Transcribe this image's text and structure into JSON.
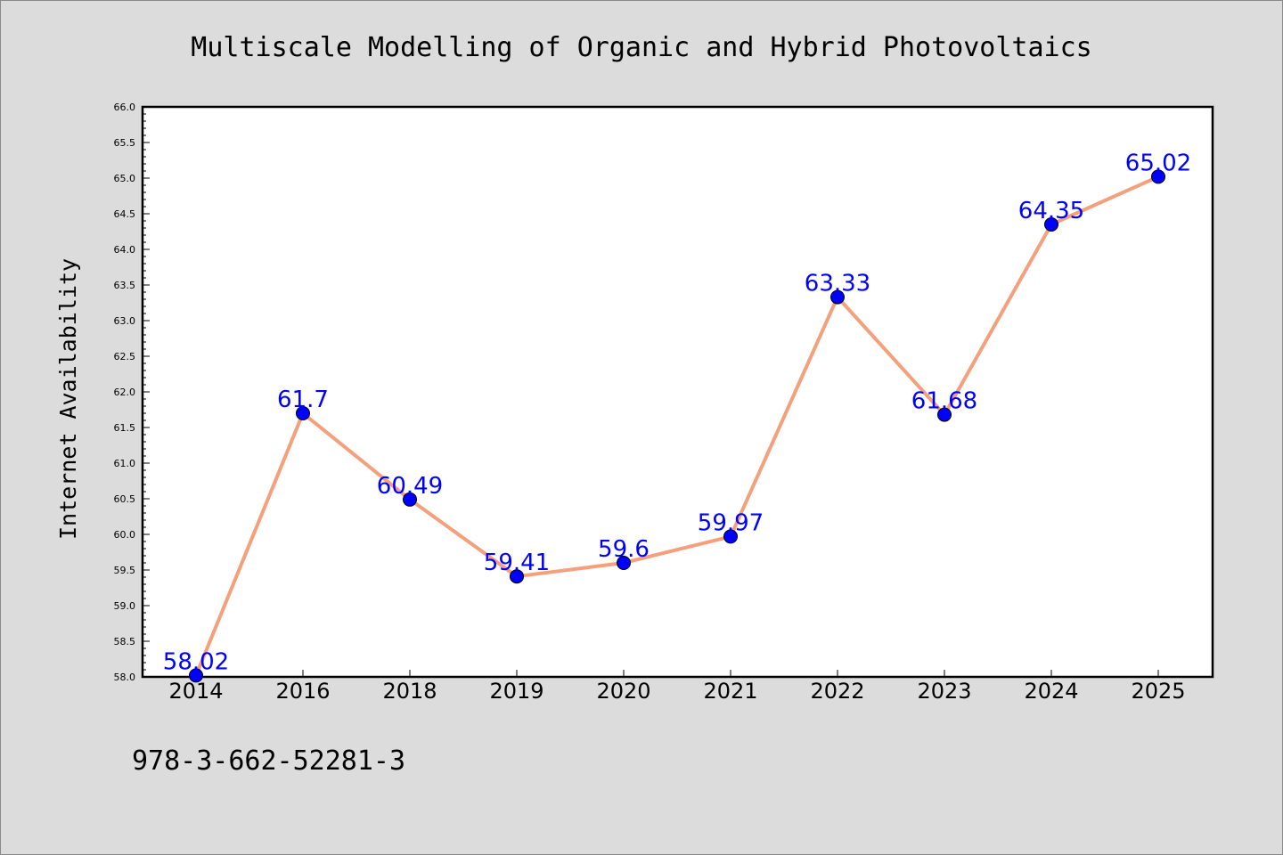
{
  "chart_data": {
    "type": "line",
    "title": "Multiscale Modelling of Organic and Hybrid Photovoltaics",
    "xlabel": "",
    "ylabel": "Internet Availability",
    "categories": [
      "2014",
      "2016",
      "2018",
      "2019",
      "2020",
      "2021",
      "2022",
      "2023",
      "2024",
      "2025"
    ],
    "series": [
      {
        "values": [
          58.02,
          61.7,
          60.49,
          59.41,
          59.6,
          59.97,
          63.33,
          61.68,
          64.35,
          65.02
        ],
        "data_labels": [
          "58.02",
          "61.7",
          "60.49",
          "59.41",
          "59.6",
          "59.97",
          "63.33",
          "61.68",
          "64.35",
          "65.02"
        ],
        "line_color": "#f4a07c",
        "marker_color": "#0000ff"
      }
    ],
    "ylim": [
      58.0,
      66.0
    ],
    "yticks": [
      "58.0",
      "58.5",
      "59.0",
      "59.5",
      "60.0",
      "60.5",
      "61.0",
      "61.5",
      "62.0",
      "62.5",
      "63.0",
      "63.5",
      "64.0",
      "64.5",
      "65.0",
      "65.5",
      "66.0"
    ],
    "grid": false,
    "legend": "none"
  },
  "footer_text": "978-3-662-52281-3"
}
